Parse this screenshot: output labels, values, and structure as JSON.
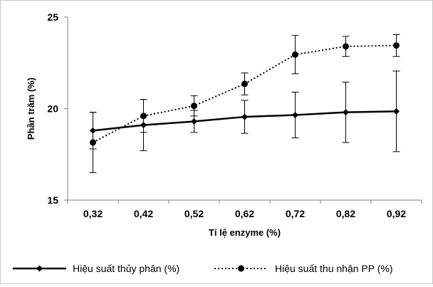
{
  "chart_data": {
    "type": "line",
    "xlabel": "Tỉ lệ enzyme (%)",
    "ylabel": "Phần trăm (%)",
    "ylim": [
      15,
      25
    ],
    "y_ticks": [
      "15",
      "20",
      "25"
    ],
    "categories": [
      "0,32",
      "0,42",
      "0,52",
      "0,62",
      "0,72",
      "0,82",
      "0,92"
    ],
    "grid": false,
    "legend_position": "bottom",
    "series": [
      {
        "name": "Hiệu suất thủy phân (%)",
        "values": [
          18.8,
          19.1,
          19.3,
          19.55,
          19.65,
          19.8,
          19.85
        ],
        "error": [
          1.0,
          1.4,
          0.6,
          0.9,
          1.25,
          1.65,
          2.2
        ],
        "line_style": "solid",
        "marker": "diamond",
        "color": "#000000"
      },
      {
        "name": "Hiệu suất thu nhận PP (%)",
        "values": [
          18.15,
          19.6,
          20.15,
          21.35,
          22.95,
          23.4,
          23.45
        ],
        "error": [
          1.65,
          0.9,
          0.55,
          0.6,
          1.05,
          0.55,
          0.6
        ],
        "line_style": "dotted",
        "marker": "circle",
        "color": "#000000"
      }
    ]
  }
}
